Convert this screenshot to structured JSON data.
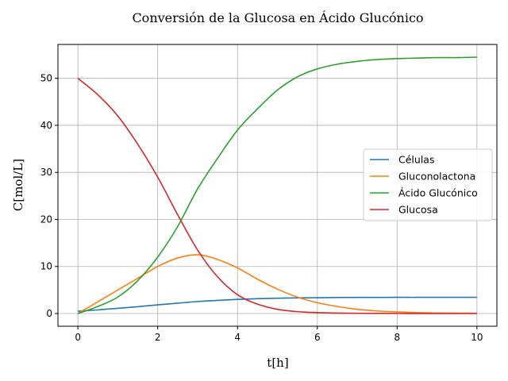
{
  "chart_data": {
    "type": "line",
    "title": "Conversión de la Glucosa en Ácido Glucónico",
    "xlabel": "t[h]",
    "ylabel": "C[mol/L]",
    "xlim": [
      -0.5,
      10.5
    ],
    "ylim": [
      -2.7,
      57.2
    ],
    "xticks": [
      0,
      2,
      4,
      6,
      8,
      10
    ],
    "yticks": [
      0,
      10,
      20,
      30,
      40,
      50
    ],
    "grid": true,
    "legend_position": "center-right",
    "x": [
      0,
      0.5,
      1,
      1.5,
      2,
      2.5,
      3,
      3.5,
      4,
      4.5,
      5,
      5.5,
      6,
      6.5,
      7,
      7.5,
      8,
      8.5,
      9,
      9.5,
      10
    ],
    "series": [
      {
        "name": "Células",
        "color": "#1f77b4",
        "values": [
          0.5,
          0.78,
          1.1,
          1.45,
          1.85,
          2.2,
          2.55,
          2.8,
          3.0,
          3.15,
          3.25,
          3.32,
          3.37,
          3.4,
          3.42,
          3.43,
          3.44,
          3.44,
          3.45,
          3.45,
          3.45
        ]
      },
      {
        "name": "Gluconolactona",
        "color": "#ff7f0e",
        "values": [
          0.0,
          2.5,
          5.0,
          7.5,
          10.0,
          11.8,
          12.5,
          11.5,
          9.7,
          7.3,
          5.2,
          3.5,
          2.3,
          1.5,
          0.9,
          0.55,
          0.35,
          0.2,
          0.12,
          0.08,
          0.05
        ]
      },
      {
        "name": "Ácido Glucónico",
        "color": "#2ca02c",
        "values": [
          0.0,
          1.5,
          3.5,
          7.0,
          12.0,
          18.5,
          26.5,
          33.0,
          39.0,
          43.5,
          47.5,
          50.3,
          52.0,
          53.0,
          53.6,
          54.0,
          54.2,
          54.3,
          54.4,
          54.4,
          54.5
        ]
      },
      {
        "name": "Glucosa",
        "color": "#d62728",
        "values": [
          50.0,
          46.5,
          42.0,
          36.0,
          29.0,
          21.0,
          13.5,
          7.8,
          4.0,
          2.0,
          0.9,
          0.4,
          0.2,
          0.1,
          0.05,
          0.03,
          0.02,
          0.01,
          0.0,
          0.0,
          0.0
        ]
      }
    ]
  }
}
